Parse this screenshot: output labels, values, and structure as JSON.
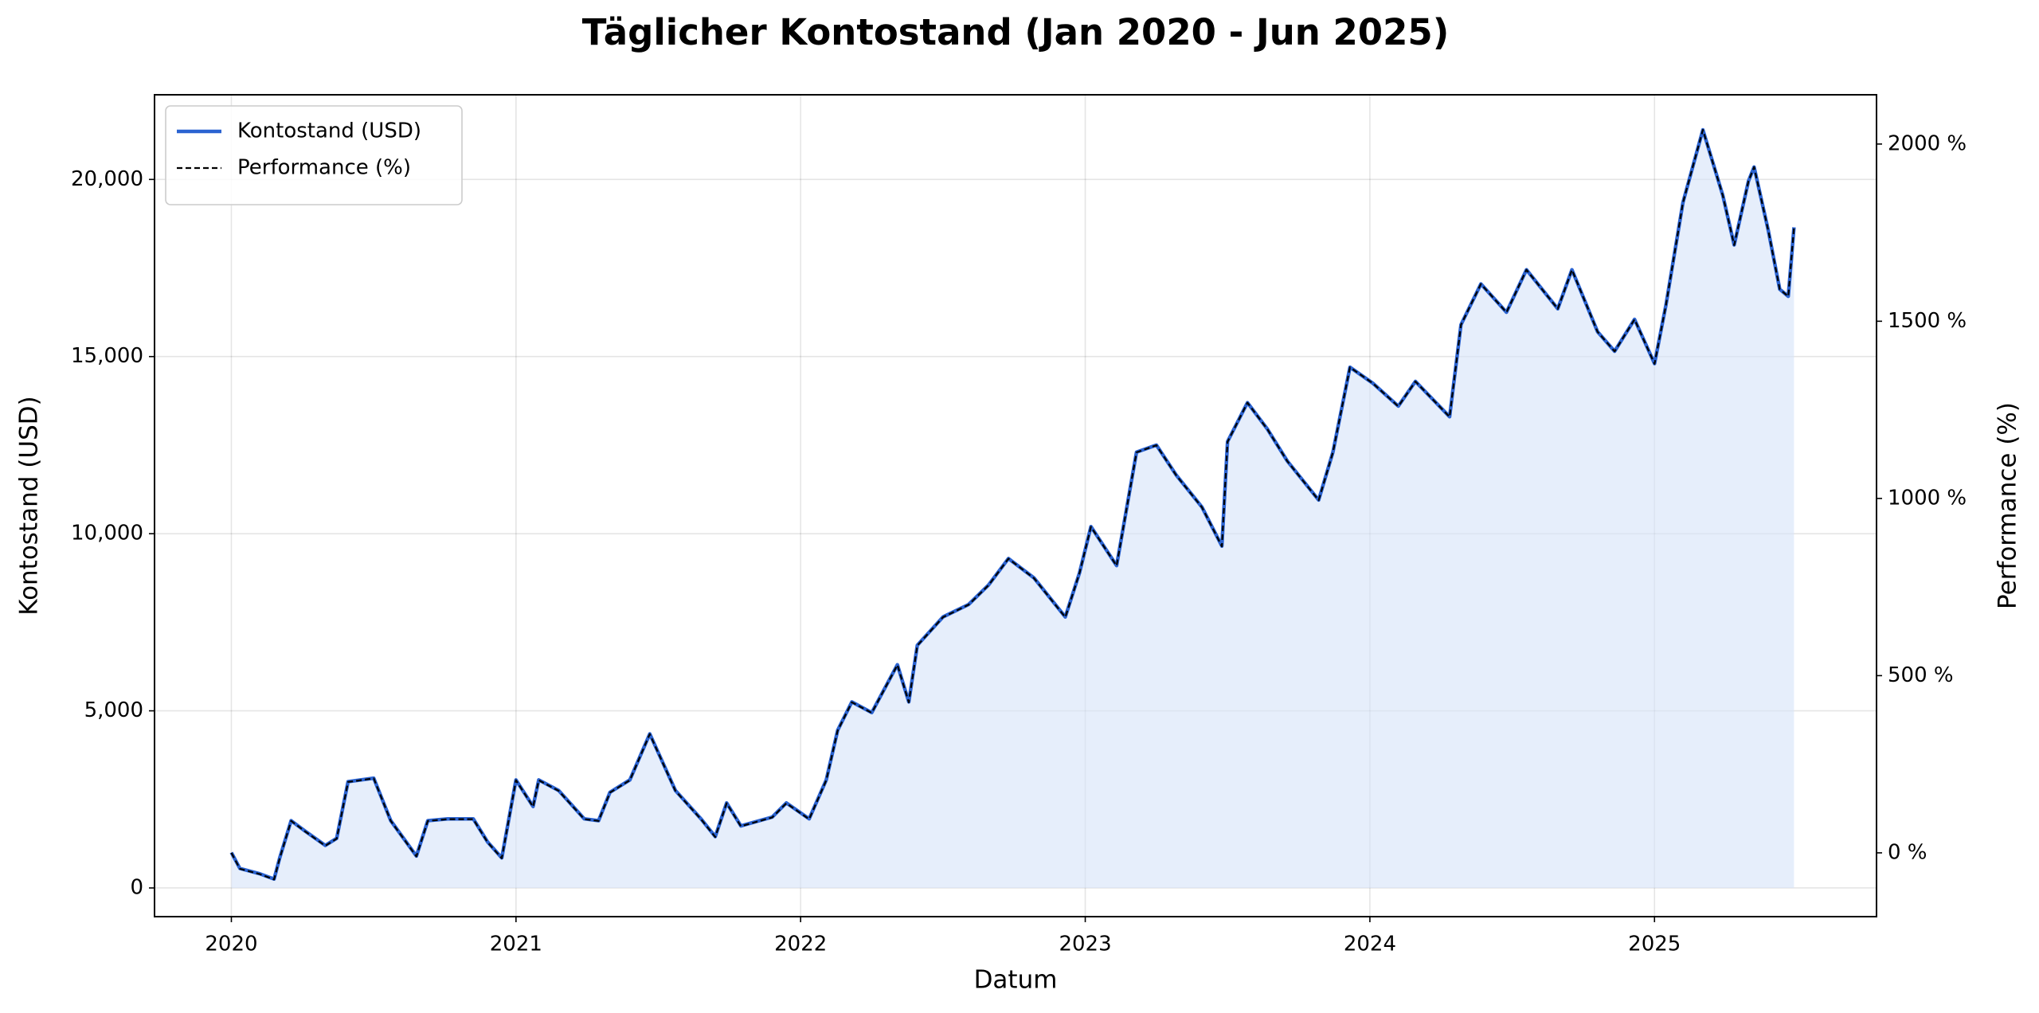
{
  "chart_data": {
    "type": "line",
    "title": "Täglicher Kontostand (Jan 2020 - Jun 2025)",
    "xlabel": "Datum",
    "ylabel": "Kontostand (USD)",
    "y2label": "Performance (%)",
    "x": [
      2020.0,
      2020.03,
      2020.1,
      2020.15,
      2020.17,
      2020.21,
      2020.26,
      2020.33,
      2020.37,
      2020.41,
      2020.5,
      2020.56,
      2020.65,
      2020.69,
      2020.76,
      2020.85,
      2020.9,
      2020.95,
      2021.0,
      2021.06,
      2021.08,
      2021.15,
      2021.24,
      2021.29,
      2021.33,
      2021.4,
      2021.47,
      2021.56,
      2021.65,
      2021.7,
      2021.74,
      2021.79,
      2021.9,
      2021.95,
      2022.03,
      2022.09,
      2022.13,
      2022.18,
      2022.25,
      2022.34,
      2022.38,
      2022.41,
      2022.5,
      2022.59,
      2022.66,
      2022.73,
      2022.82,
      2022.93,
      2022.98,
      2023.02,
      2023.11,
      2023.18,
      2023.25,
      2023.32,
      2023.41,
      2023.48,
      2023.5,
      2023.57,
      2023.64,
      2023.71,
      2023.82,
      2023.87,
      2023.93,
      2024.01,
      2024.1,
      2024.16,
      2024.28,
      2024.32,
      2024.39,
      2024.48,
      2024.55,
      2024.66,
      2024.71,
      2024.8,
      2024.86,
      2024.93,
      2025.0,
      2025.04,
      2025.1,
      2025.17,
      2025.24,
      2025.28,
      2025.33,
      2025.35,
      2025.4,
      2025.44,
      2025.47,
      2025.49
    ],
    "series": [
      {
        "name": "Kontostand (USD)",
        "color": "#2b63d1",
        "linestyle": "solid",
        "fill": "#d5e2f8",
        "axis": "y",
        "values": [
          1000,
          550,
          400,
          250,
          850,
          1900,
          1600,
          1200,
          1400,
          3000,
          3100,
          1900,
          900,
          1900,
          1950,
          1950,
          1300,
          850,
          3050,
          2300,
          3050,
          2750,
          1950,
          1900,
          2700,
          3050,
          4350,
          2750,
          1950,
          1450,
          2400,
          1750,
          2000,
          2400,
          1950,
          3050,
          4450,
          5250,
          4950,
          6300,
          5250,
          6850,
          7650,
          8000,
          8550,
          9300,
          8750,
          7650,
          8900,
          10200,
          9100,
          12300,
          12500,
          11650,
          10750,
          9650,
          12600,
          13700,
          12950,
          12050,
          10950,
          12300,
          14700,
          14250,
          13600,
          14300,
          13300,
          15900,
          17050,
          16250,
          17450,
          16350,
          17450,
          15700,
          15150,
          16050,
          14800,
          16450,
          19350,
          21400,
          19550,
          18150,
          19950,
          20350,
          18550,
          16900,
          16700,
          18650
        ]
      },
      {
        "name": "Performance (%)",
        "color": "#000000",
        "linestyle": "dashed",
        "axis": "y2",
        "values": [
          0,
          -45,
          -60,
          -75,
          -15,
          90,
          60,
          20,
          40,
          200,
          210,
          90,
          -10,
          90,
          95,
          95,
          30,
          -15,
          205,
          130,
          205,
          175,
          95,
          90,
          170,
          205,
          335,
          175,
          95,
          45,
          140,
          75,
          100,
          140,
          95,
          205,
          345,
          425,
          395,
          530,
          425,
          585,
          665,
          700,
          755,
          830,
          775,
          665,
          790,
          920,
          810,
          1130,
          1150,
          1065,
          975,
          865,
          1160,
          1270,
          1195,
          1105,
          995,
          1130,
          1370,
          1325,
          1260,
          1330,
          1230,
          1490,
          1605,
          1525,
          1645,
          1535,
          1645,
          1470,
          1415,
          1505,
          1380,
          1545,
          1835,
          2040,
          1855,
          1715,
          1895,
          1935,
          1755,
          1590,
          1570,
          1765
        ]
      }
    ],
    "xlim": [
      2019.73,
      2025.78
    ],
    "xticks": [
      2020,
      2021,
      2022,
      2023,
      2024,
      2025
    ],
    "ylim": [
      -810,
      22390
    ],
    "yticks": [
      0,
      {
        "value": 5000,
        "label": "5,000"
      },
      {
        "value": 10000,
        "label": "10,000"
      },
      {
        "value": 15000,
        "label": "15,000"
      },
      {
        "value": 20000,
        "label": "20,000"
      }
    ],
    "y2lim": [
      -180,
      2139
    ],
    "y2ticks": [
      {
        "value": 0,
        "label": "0 %"
      },
      {
        "value": 500,
        "label": "500 %"
      },
      {
        "value": 1000,
        "label": "1000 %"
      },
      {
        "value": 1500,
        "label": "1500 %"
      },
      {
        "value": 2000,
        "label": "2000 %"
      }
    ],
    "grid": true,
    "legend": "upper left"
  }
}
